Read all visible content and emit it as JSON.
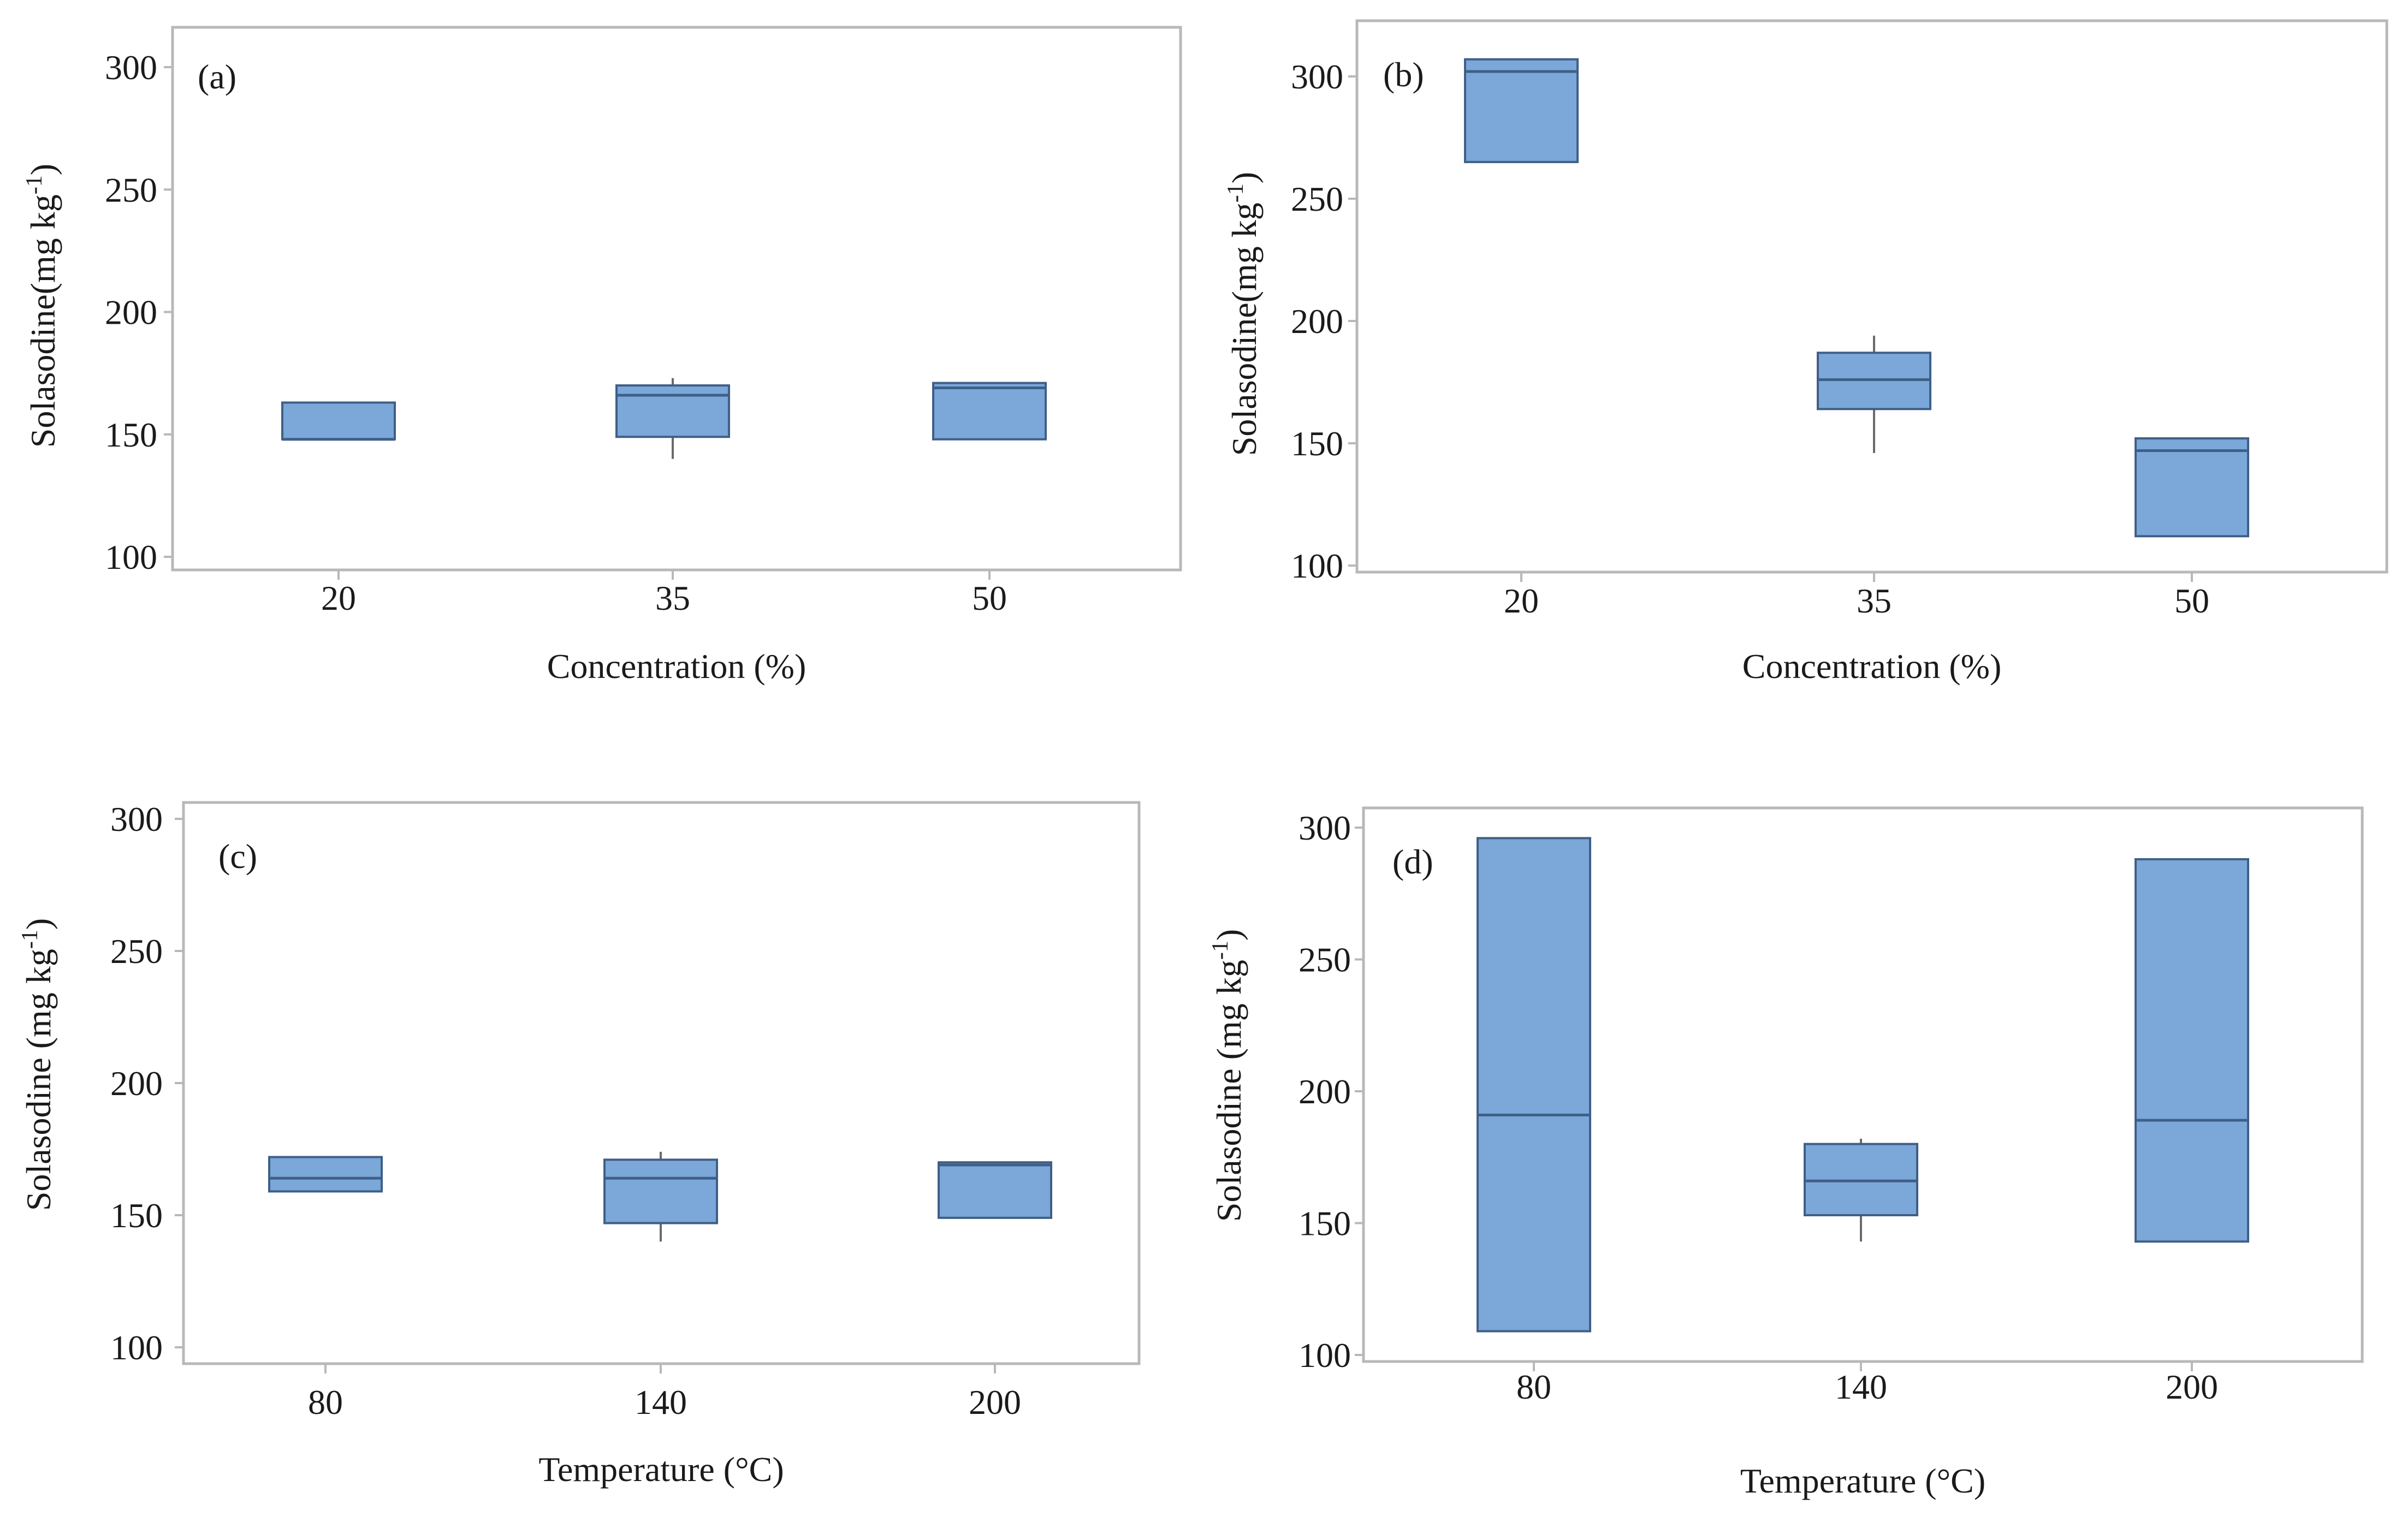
{
  "chart_data": [
    {
      "type": "box",
      "panel_label": "(a)",
      "xlabel": "Concentration (%)",
      "ylabel": "Solasodine(mg kg-1)",
      "ylim": [
        100,
        300
      ],
      "yticks": [
        "100",
        "150",
        "200",
        "250",
        "300"
      ],
      "categories": [
        "20",
        "35",
        "50"
      ],
      "boxes": [
        {
          "q1": 148,
          "median": 148,
          "q3": 163,
          "whisker_low": null,
          "whisker_high": null
        },
        {
          "q1": 149,
          "median": 166,
          "q3": 170,
          "whisker_low": 140,
          "whisker_high": 173
        },
        {
          "q1": 148,
          "median": 169,
          "q3": 171,
          "whisker_low": null,
          "whisker_high": null
        }
      ]
    },
    {
      "type": "box",
      "panel_label": "(b)",
      "xlabel": "Concentration (%)",
      "ylabel": "Solasodine(mg kg-1)",
      "ylim": [
        100,
        300
      ],
      "yticks": [
        "100",
        "150",
        "200",
        "250",
        "300"
      ],
      "categories": [
        "20",
        "35",
        "50"
      ],
      "boxes": [
        {
          "q1": 265,
          "median": 302,
          "q3": 307,
          "whisker_low": null,
          "whisker_high": null
        },
        {
          "q1": 164,
          "median": 176,
          "q3": 187,
          "whisker_low": 146,
          "whisker_high": 194
        },
        {
          "q1": 112,
          "median": 147,
          "q3": 152,
          "whisker_low": null,
          "whisker_high": null
        }
      ]
    },
    {
      "type": "box",
      "panel_label": "(c)",
      "xlabel": "Temperature (°C)",
      "ylabel": "Solasodine (mg kg-1)",
      "ylim": [
        100,
        300
      ],
      "yticks": [
        "100",
        "150",
        "200",
        "250",
        "300"
      ],
      "categories": [
        "80",
        "140",
        "200"
      ],
      "boxes": [
        {
          "q1": 159,
          "median": 164,
          "q3": 172,
          "whisker_low": null,
          "whisker_high": null
        },
        {
          "q1": 147,
          "median": 164,
          "q3": 171,
          "whisker_low": 140,
          "whisker_high": 174
        },
        {
          "q1": 149,
          "median": 169,
          "q3": 170,
          "whisker_low": null,
          "whisker_high": null
        }
      ]
    },
    {
      "type": "box",
      "panel_label": "(d)",
      "xlabel": "Temperature (°C)",
      "ylabel": "Solasodine (mg kg-1)",
      "ylim": [
        100,
        300
      ],
      "yticks": [
        "100",
        "150",
        "200",
        "250",
        "300"
      ],
      "categories": [
        "80",
        "140",
        "200"
      ],
      "boxes": [
        {
          "q1": 109,
          "median": 191,
          "q3": 296,
          "whisker_low": null,
          "whisker_high": null
        },
        {
          "q1": 153,
          "median": 166,
          "q3": 180,
          "whisker_low": 143,
          "whisker_high": 182
        },
        {
          "q1": 143,
          "median": 189,
          "q3": 288,
          "whisker_low": null,
          "whisker_high": null
        }
      ]
    }
  ],
  "colors": {
    "box_fill": "#7ba7d9",
    "box_stroke": "#3f5f86",
    "frame": "#b8b8b8",
    "text": "#1a1a1a"
  }
}
